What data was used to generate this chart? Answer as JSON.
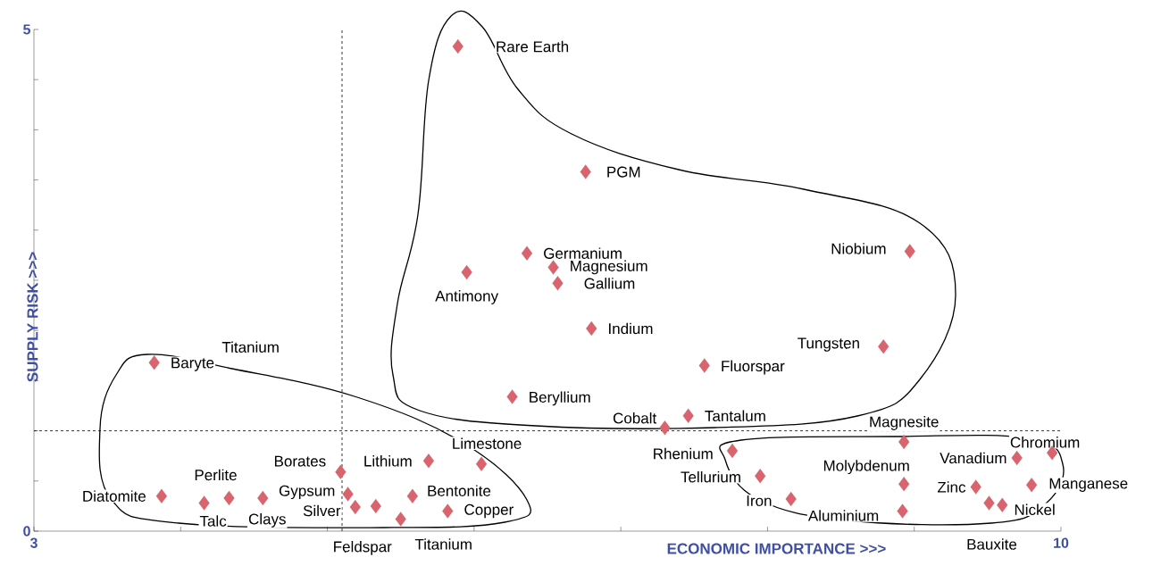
{
  "chart_data": {
    "type": "scatter",
    "xlabel": "ECONOMIC IMPORTANCE >>>",
    "ylabel": "SUPPLY RISK >>>",
    "xlim": [
      3,
      10
    ],
    "ylim": [
      0,
      5
    ],
    "xticks": [
      {
        "value": 3,
        "label": "3"
      },
      {
        "value": 4,
        "label": null
      },
      {
        "value": 5,
        "label": null
      },
      {
        "value": 6,
        "label": null
      },
      {
        "value": 7,
        "label": null
      },
      {
        "value": 8,
        "label": null
      },
      {
        "value": 9,
        "label": null
      },
      {
        "value": 10,
        "label": "10"
      }
    ],
    "yticks": [
      {
        "value": 0,
        "label": "0"
      },
      {
        "value": 0.5,
        "label": null
      },
      {
        "value": 1,
        "label": null
      },
      {
        "value": 1.5,
        "label": null
      },
      {
        "value": 2,
        "label": null
      },
      {
        "value": 2.5,
        "label": null
      },
      {
        "value": 3,
        "label": null
      },
      {
        "value": 3.5,
        "label": null
      },
      {
        "value": 4,
        "label": null
      },
      {
        "value": 4.5,
        "label": null
      },
      {
        "value": 5,
        "label": "5"
      }
    ],
    "grid": false,
    "marker": "diamond",
    "color": "#d9646e",
    "x": [
      5.89,
      6.76,
      6.36,
      6.54,
      6.57,
      5.95,
      8.97,
      6.8,
      8.79,
      7.57,
      6.26,
      7.46,
      7.3,
      3.82,
      8.93,
      7.76,
      9.94,
      9.7,
      7.95,
      8.93,
      9.8,
      9.42,
      8.16,
      9.6,
      9.51,
      8.92,
      6.05,
      5.69,
      5.09,
      5.14,
      5.58,
      5.19,
      5.33,
      5.82,
      5.5,
      3.87,
      4.16,
      4.33,
      4.56
    ],
    "values": [
      4.83,
      3.58,
      2.77,
      2.63,
      2.47,
      2.58,
      2.79,
      2.02,
      1.84,
      1.65,
      1.34,
      1.15,
      1.03,
      1.68,
      0.89,
      0.8,
      0.78,
      0.73,
      0.55,
      0.47,
      0.46,
      0.44,
      0.32,
      0.26,
      0.28,
      0.2,
      0.67,
      0.7,
      0.59,
      0.37,
      0.35,
      0.24,
      0.25,
      0.2,
      0.12,
      0.35,
      0.28,
      0.33,
      0.33
    ],
    "ref_lines": [
      {
        "axis": "x",
        "value": 5.1,
        "line_style": "dashed"
      },
      {
        "axis": "y",
        "value": 1,
        "line_style": "dashed"
      }
    ],
    "annotations": [
      {
        "text": "Rare Earth",
        "x": 5.89,
        "y": 4.83
      },
      {
        "text": "PGM",
        "x": 6.76,
        "y": 3.58
      },
      {
        "text": "Germanium",
        "x": 6.36,
        "y": 2.77
      },
      {
        "text": "Magnesium",
        "x": 6.54,
        "y": 2.63
      },
      {
        "text": "Gallium",
        "x": 6.57,
        "y": 2.47
      },
      {
        "text": "Antimony",
        "x": 5.95,
        "y": 2.58
      },
      {
        "text": "Niobium",
        "x": 8.97,
        "y": 2.79
      },
      {
        "text": "Indium",
        "x": 6.8,
        "y": 2.02
      },
      {
        "text": "Tungsten",
        "x": 8.79,
        "y": 1.84
      },
      {
        "text": "Fluorspar",
        "x": 7.57,
        "y": 1.65
      },
      {
        "text": "Beryllium",
        "x": 6.26,
        "y": 1.34
      },
      {
        "text": "Tantalum",
        "x": 7.46,
        "y": 1.15
      },
      {
        "text": "Cobalt",
        "x": 7.3,
        "y": 1.03
      },
      {
        "text": "Baryte",
        "x": 3.82,
        "y": 1.68
      },
      {
        "text": "Magnesite",
        "x": 8.93,
        "y": 0.89
      },
      {
        "text": "Rhenium",
        "x": 7.76,
        "y": 0.8
      },
      {
        "text": "Chromium",
        "x": 9.94,
        "y": 0.78
      },
      {
        "text": "Vanadium",
        "x": 9.7,
        "y": 0.73
      },
      {
        "text": "Tellurium",
        "x": 7.95,
        "y": 0.55
      },
      {
        "text": "Molybdenum",
        "x": 8.93,
        "y": 0.47
      },
      {
        "text": "Manganese",
        "x": 9.8,
        "y": 0.46
      },
      {
        "text": "Zinc",
        "x": 9.42,
        "y": 0.44
      },
      {
        "text": "Iron",
        "x": 8.16,
        "y": 0.32
      },
      {
        "text": "Nickel",
        "x": 9.6,
        "y": 0.26
      },
      {
        "text": "Bauxite",
        "x": 9.51,
        "y": 0.28
      },
      {
        "text": "Aluminium",
        "x": 8.92,
        "y": 0.2
      },
      {
        "text": "Limestone",
        "x": 6.05,
        "y": 0.67
      },
      {
        "text": "Lithium",
        "x": 5.69,
        "y": 0.7
      },
      {
        "text": "Borates",
        "x": 5.09,
        "y": 0.59
      },
      {
        "text": "Gypsum",
        "x": 5.14,
        "y": 0.37
      },
      {
        "text": "Bentonite",
        "x": 5.58,
        "y": 0.35
      },
      {
        "text": "Silver",
        "x": 5.19,
        "y": 0.24
      },
      {
        "text": "Feldspar",
        "x": 5.33,
        "y": 0.25
      },
      {
        "text": "Copper",
        "x": 5.82,
        "y": 0.2
      },
      {
        "text": "Titanium",
        "x": 5.5,
        "y": 0.12
      },
      {
        "text": "Diatomite",
        "x": 3.87,
        "y": 0.35
      },
      {
        "text": "Talc",
        "x": 4.16,
        "y": 0.28
      },
      {
        "text": "Perlite",
        "x": 4.33,
        "y": 0.33
      },
      {
        "text": "Clays",
        "x": 4.56,
        "y": 0.33
      },
      "Titanium"
    ]
  }
}
